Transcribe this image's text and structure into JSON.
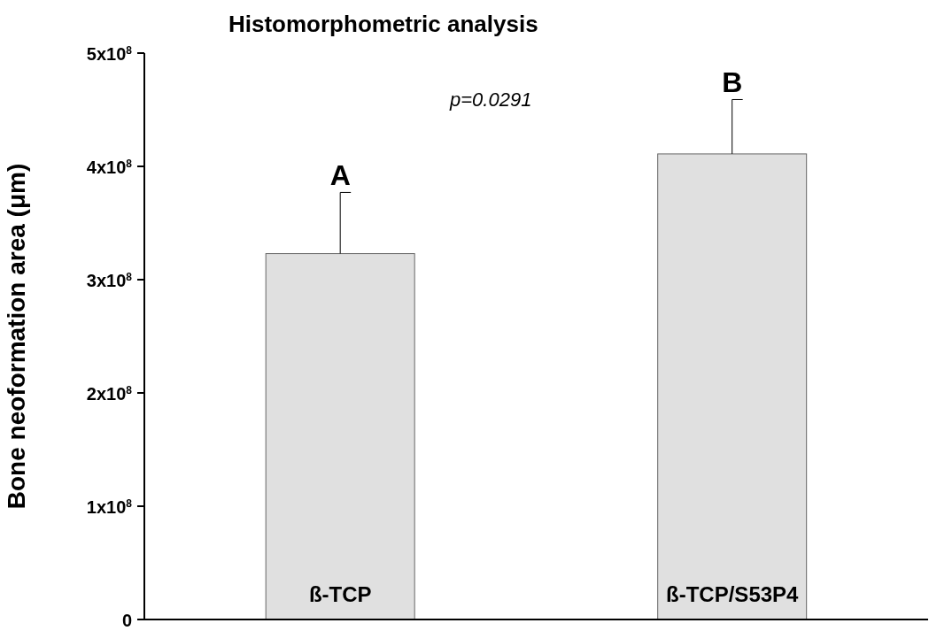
{
  "chart_data": {
    "type": "bar",
    "title": "Histomorphometric analysis",
    "ylabel": "Bone neoformation area (μm)",
    "categories": [
      "ß-TCP",
      "ß-TCP/S53P4"
    ],
    "values": [
      323000000,
      411000000
    ],
    "errors": [
      [
        323000000,
        377000000
      ],
      [
        411000000,
        459000000
      ]
    ],
    "color": "#e0e0e0",
    "ylim": [
      0,
      500000000
    ],
    "yticks": [
      0,
      {
        "value": 100000000,
        "label": "1x10$^{8}$"
      },
      {
        "value": 200000000,
        "label": "2x10$^{8}$"
      },
      {
        "value": 300000000,
        "label": "3x10$^{8}$"
      },
      {
        "value": 400000000,
        "label": "4x10$^{8}$"
      },
      {
        "value": 500000000,
        "label": "5x10$^{8}$"
      }
    ],
    "annotations": [
      {
        "text": "A",
        "x": "ß-TCP",
        "y": 377000000
      },
      {
        "text": "B",
        "x": "ß-TCP/S53P4",
        "y": 459000000
      },
      "p=0.0291"
    ],
    "grid": false,
    "legend": false
  }
}
